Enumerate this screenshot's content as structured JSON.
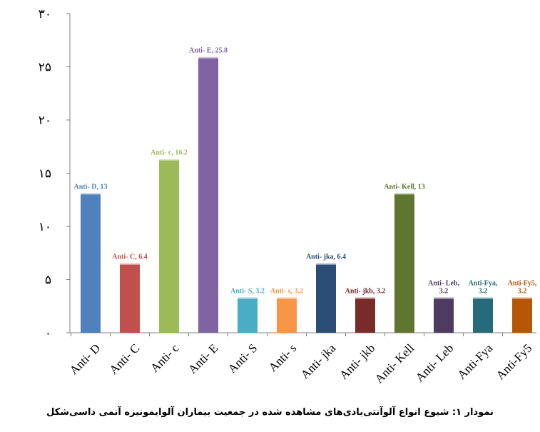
{
  "chart_data": {
    "type": "bar",
    "caption": "نمودار ۱: شیوع انواع آلوآنتی‌بادی‌های مشاهده شده در جمعیت بیماران آلوایمونیزه آنمی داسی‌شکل",
    "categories": [
      "Anti- D",
      "Anti- C",
      "Anti- c",
      "Anti- E",
      "Anti- S",
      "Anti- s",
      "Anti- jka",
      "Anti- jkb",
      "Anti- Kell",
      "Anti- Leb",
      "Anti-Fya",
      "Anti-Fy5"
    ],
    "values": [
      13,
      6.4,
      16.2,
      25.8,
      3.2,
      3.2,
      6.4,
      3.2,
      13,
      3.2,
      3.2,
      3.2
    ],
    "data_labels": [
      [
        "Anti- D, 13"
      ],
      [
        "Anti- C, 6.4"
      ],
      [
        "Anti- c, 16.2"
      ],
      [
        "Anti- E, 25.8"
      ],
      [
        "Anti- S, 3.2"
      ],
      [
        "Anti- s, 3.2"
      ],
      [
        "Anti- jka, 6.4"
      ],
      [
        "Anti- jkb, 3.2"
      ],
      [
        "Anti- Kell, 13"
      ],
      [
        "Anti- Leb,",
        "3.2"
      ],
      [
        "Anti-Fya,",
        "3.2"
      ],
      [
        "Anti-Fy5,",
        "3.2"
      ]
    ],
    "colors": [
      "#4f81bd",
      "#c0504d",
      "#9bbb59",
      "#8064a2",
      "#4bacc6",
      "#f79646",
      "#2c4d75",
      "#772c2a",
      "#5f7530",
      "#4d3b62",
      "#276a7c",
      "#b65708"
    ],
    "ylim": [
      0,
      30
    ],
    "yticks": [
      0,
      5,
      10,
      15,
      20,
      25,
      30
    ],
    "ytick_labels": [
      "۰",
      "۵",
      "۱۰",
      "۱۵",
      "۲۰",
      "۲۵",
      "۳۰"
    ],
    "grid": false,
    "legend": "none"
  }
}
